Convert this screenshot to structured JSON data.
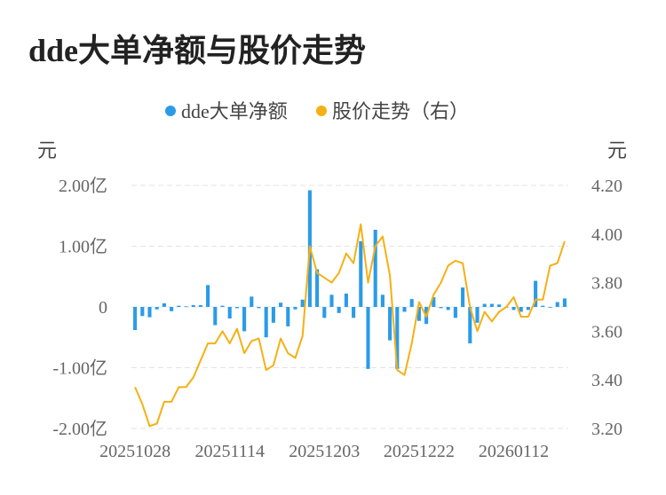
{
  "title": "dde大单净额与股价走势",
  "chart_data": {
    "type": "bar+line",
    "legend": {
      "position": "top-center",
      "items": [
        {
          "label": "dde大单净额",
          "color": "#2b9be8"
        },
        {
          "label": "股价走势（右）",
          "color": "#f5b014"
        }
      ]
    },
    "left_axis": {
      "unit": "元",
      "range": [
        -2.0,
        2.0
      ],
      "ticks": [
        {
          "v": 2.0,
          "label": "2.00亿"
        },
        {
          "v": 1.0,
          "label": "1.00亿"
        },
        {
          "v": 0,
          "label": "0"
        },
        {
          "v": -1.0,
          "label": "-1.00亿"
        },
        {
          "v": -2.0,
          "label": "-2.00亿"
        }
      ]
    },
    "right_axis": {
      "unit": "元",
      "range": [
        3.2,
        4.2
      ],
      "ticks": [
        {
          "v": 4.2,
          "label": "4.20"
        },
        {
          "v": 4.0,
          "label": "4.00"
        },
        {
          "v": 3.8,
          "label": "3.80"
        },
        {
          "v": 3.6,
          "label": "3.60"
        },
        {
          "v": 3.4,
          "label": "3.40"
        },
        {
          "v": 3.2,
          "label": "3.20"
        }
      ]
    },
    "x_tick_labels": [
      {
        "index": 0,
        "label": "20251028"
      },
      {
        "index": 13,
        "label": "20251114"
      },
      {
        "index": 26,
        "label": "20251203"
      },
      {
        "index": 39,
        "label": "20251222"
      },
      {
        "index": 52,
        "label": "20260112"
      }
    ],
    "grid": true,
    "series": [
      {
        "name": "dde大单净额",
        "type": "bar",
        "unit": "亿",
        "values": [
          -0.38,
          -0.15,
          -0.17,
          -0.04,
          0.06,
          -0.07,
          0.02,
          0.01,
          0.03,
          0.03,
          0.36,
          -0.3,
          0.02,
          -0.19,
          -0.02,
          -0.4,
          0.17,
          -0.02,
          -0.5,
          -0.26,
          0.07,
          -0.32,
          -0.04,
          0.12,
          1.92,
          0.62,
          -0.18,
          0.2,
          -0.1,
          0.22,
          -0.18,
          1.08,
          -1.02,
          1.27,
          0.2,
          -0.55,
          -1.02,
          -0.08,
          0.13,
          -0.23,
          -0.28,
          0.16,
          -0.02,
          -0.05,
          -0.18,
          0.32,
          -0.6,
          -0.26,
          0.05,
          0.05,
          0.04,
          0.0,
          -0.05,
          -0.08,
          -0.05,
          0.43,
          0.02,
          0.0,
          0.08,
          0.14
        ]
      },
      {
        "name": "股价走势（右）",
        "type": "line",
        "unit": "元",
        "values": [
          3.37,
          3.3,
          3.21,
          3.22,
          3.31,
          3.31,
          3.37,
          3.37,
          3.41,
          3.48,
          3.55,
          3.55,
          3.6,
          3.55,
          3.61,
          3.51,
          3.56,
          3.57,
          3.44,
          3.46,
          3.57,
          3.51,
          3.49,
          3.58,
          3.95,
          3.84,
          3.82,
          3.8,
          3.84,
          3.92,
          3.88,
          4.04,
          3.8,
          3.95,
          3.99,
          3.83,
          3.44,
          3.42,
          3.55,
          3.72,
          3.66,
          3.75,
          3.8,
          3.87,
          3.89,
          3.88,
          3.7,
          3.6,
          3.68,
          3.64,
          3.68,
          3.7,
          3.74,
          3.66,
          3.66,
          3.73,
          3.73,
          3.87,
          3.88,
          3.97
        ]
      }
    ]
  }
}
